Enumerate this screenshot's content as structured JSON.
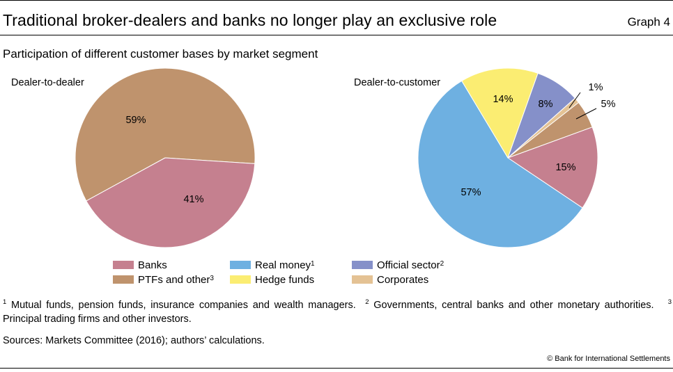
{
  "header": {
    "title": "Traditional broker-dealers and banks no longer play an exclusive role",
    "graph_number": "Graph 4",
    "subtitle": "Participation of different customer bases by market segment"
  },
  "colors": {
    "banks": "#c5808f",
    "ptfs": "#bf936d",
    "real_money": "#6eb0e1",
    "hedge_funds": "#fbed72",
    "official_sector": "#8590c9",
    "corporates": "#e4c294"
  },
  "legend": [
    {
      "key": "banks",
      "label": "Banks",
      "note": ""
    },
    {
      "key": "ptfs",
      "label": "PTFs and other",
      "note": "3"
    },
    {
      "key": "real_money",
      "label": "Real money",
      "note": "1"
    },
    {
      "key": "hedge_funds",
      "label": "Hedge funds",
      "note": ""
    },
    {
      "key": "official_sector",
      "label": "Official sector",
      "note": "2"
    },
    {
      "key": "corporates",
      "label": "Corporates",
      "note": ""
    }
  ],
  "chart_data": [
    {
      "type": "pie",
      "title": "Dealer-to-dealer",
      "slices": [
        {
          "key": "ptfs",
          "label": "59%",
          "value": 59
        },
        {
          "key": "banks",
          "label": "41%",
          "value": 41
        }
      ]
    },
    {
      "type": "pie",
      "title": "Dealer-to-customer",
      "slices": [
        {
          "key": "banks",
          "label": "15%",
          "value": 15
        },
        {
          "key": "real_money",
          "label": "57%",
          "value": 57
        },
        {
          "key": "hedge_funds",
          "label": "14%",
          "value": 14
        },
        {
          "key": "official_sector",
          "label": "8%",
          "value": 8
        },
        {
          "key": "corporates",
          "label": "1%",
          "value": 1
        },
        {
          "key": "ptfs",
          "label": "5%",
          "value": 5
        }
      ]
    }
  ],
  "footnotes": {
    "n1_mark": "1",
    "n1_text": "Mutual funds, pension funds, insurance companies and wealth managers.",
    "n2_mark": "2",
    "n2_text": "Governments, central banks and other monetary authorities.",
    "n3_mark": "3",
    "n3_text": "Principal trading firms and other investors."
  },
  "sources": "Sources: Markets Committee (2016); authors’ calculations.",
  "copyright": "© Bank for International Settlements"
}
